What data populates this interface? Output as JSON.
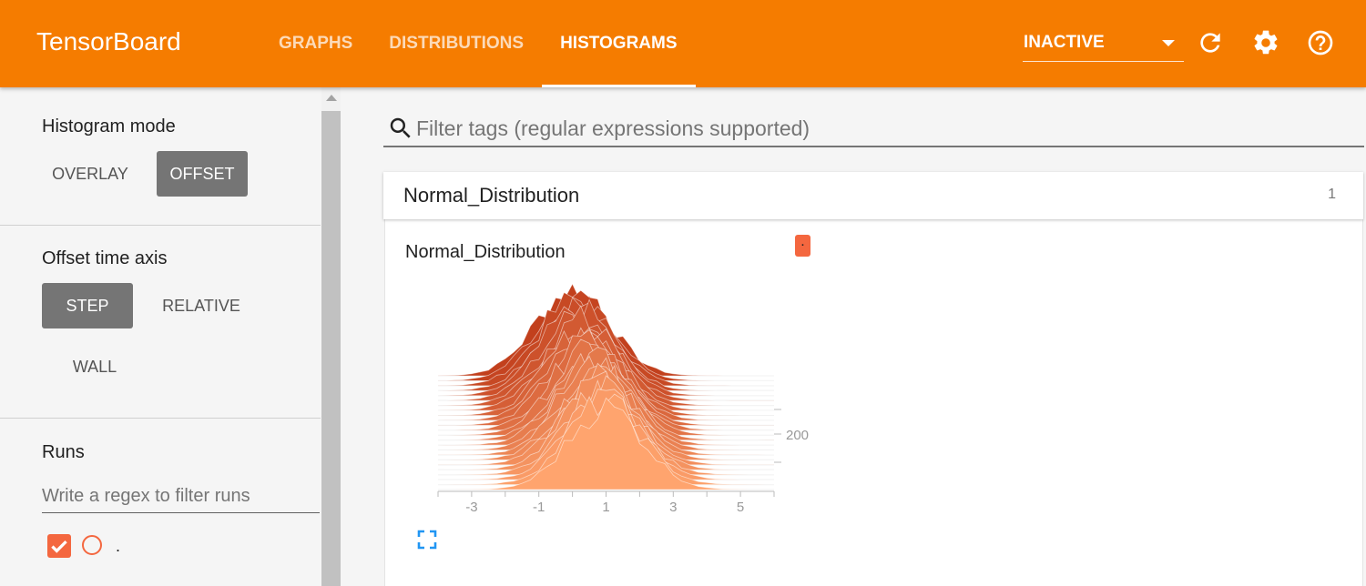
{
  "app": {
    "title": "TensorBoard",
    "tabs": [
      {
        "label": "GRAPHS",
        "active": false
      },
      {
        "label": "DISTRIBUTIONS",
        "active": false
      },
      {
        "label": "HISTOGRAMS",
        "active": true
      }
    ],
    "run_selector": {
      "value": "INACTIVE"
    },
    "icons": [
      "refresh-icon",
      "settings-icon",
      "help-icon"
    ]
  },
  "sidebar": {
    "histogram_mode": {
      "title": "Histogram mode",
      "options": [
        "OVERLAY",
        "OFFSET"
      ],
      "selected": "OFFSET"
    },
    "offset_time_axis": {
      "title": "Offset time axis",
      "options": [
        "STEP",
        "RELATIVE",
        "WALL"
      ],
      "selected": "STEP"
    },
    "runs": {
      "title": "Runs",
      "filter_placeholder": "Write a regex to filter runs",
      "items": [
        {
          "name": ".",
          "checked": true,
          "color": "#f4673f"
        }
      ]
    }
  },
  "main": {
    "search_placeholder": "Filter tags (regular expressions supported)",
    "category": {
      "name": "Normal_Distribution",
      "count": "1"
    },
    "card": {
      "title": "Normal_Distribution",
      "run_chip_label": "."
    }
  },
  "chart_data": {
    "type": "area",
    "mode": "offset",
    "x_ticks": [
      "-3",
      "-1",
      "1",
      "3",
      "5"
    ],
    "x_range": [
      -4,
      6
    ],
    "y_tick_labels": [
      "200"
    ],
    "distribution": "normal",
    "mean_front": 1,
    "mean_back": 0,
    "slice_count": 24,
    "colors": {
      "back": "#c2401d",
      "front": "#ffa46e",
      "outline": "#ffffff"
    }
  }
}
